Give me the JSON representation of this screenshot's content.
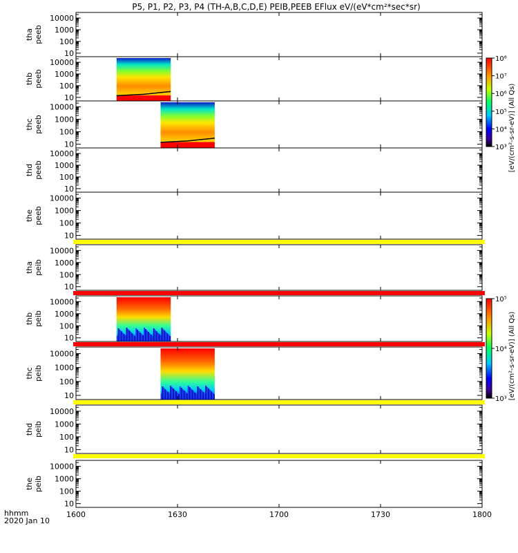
{
  "chart_data": {
    "type": "heatmap",
    "title": "P5, P1, P2, P3, P4 (TH-A,B,C,D,E) PEIB,PEEB EFlux eV/(eV*cm²*sec*sr)",
    "x_label": "hhmm",
    "date_label": "2020 Jan 10",
    "x_range": [
      "1600",
      "1800"
    ],
    "x_ticks": [
      "1600",
      "1630",
      "1700",
      "1730",
      "1800"
    ],
    "y_scale": "log",
    "y_ticks": [
      "10",
      "100",
      "1000",
      "10000"
    ],
    "panels": [
      {
        "label1": "tha",
        "label2": "peeb",
        "data_x_range": null
      },
      {
        "label1": "thb",
        "label2": "peeb",
        "data_x_range": [
          "1612",
          "1628"
        ],
        "colorbar": "peeb"
      },
      {
        "label1": "thc",
        "label2": "peeb",
        "data_x_range": [
          "1625",
          "1641"
        ],
        "colorbar": "peeb"
      },
      {
        "label1": "thd",
        "label2": "peeb",
        "data_x_range": null
      },
      {
        "label1": "the",
        "label2": "peeb",
        "data_x_range": null,
        "flag_bar": "yellow"
      },
      {
        "label1": "tha",
        "label2": "peib",
        "data_x_range": null,
        "flag_bar": "red"
      },
      {
        "label1": "thb",
        "label2": "peib",
        "data_x_range": [
          "1612",
          "1628"
        ],
        "colorbar": "peib",
        "flag_bar": "red"
      },
      {
        "label1": "thc",
        "label2": "peib",
        "data_x_range": [
          "1625",
          "1641"
        ],
        "colorbar": "peib",
        "flag_bar": "yellow"
      },
      {
        "label1": "thd",
        "label2": "peib",
        "data_x_range": null,
        "flag_bar": "yellow"
      },
      {
        "label1": "the",
        "label2": "peib",
        "data_x_range": null
      }
    ],
    "colorbars": {
      "peeb": {
        "label": "[eV/(cm²-s-sr-eV)] (All Qs)",
        "ticks": [
          "10³",
          "10⁴",
          "10⁵",
          "10⁶",
          "10⁷",
          "10⁸"
        ]
      },
      "peib": {
        "label": "[eV/(cm²-s-sr-eV)] (All Qs)",
        "ticks": [
          "10³",
          "10⁴",
          "10⁵"
        ]
      }
    },
    "colors": {
      "flag_yellow": "#ffff00",
      "flag_red": "#ff0000"
    }
  }
}
